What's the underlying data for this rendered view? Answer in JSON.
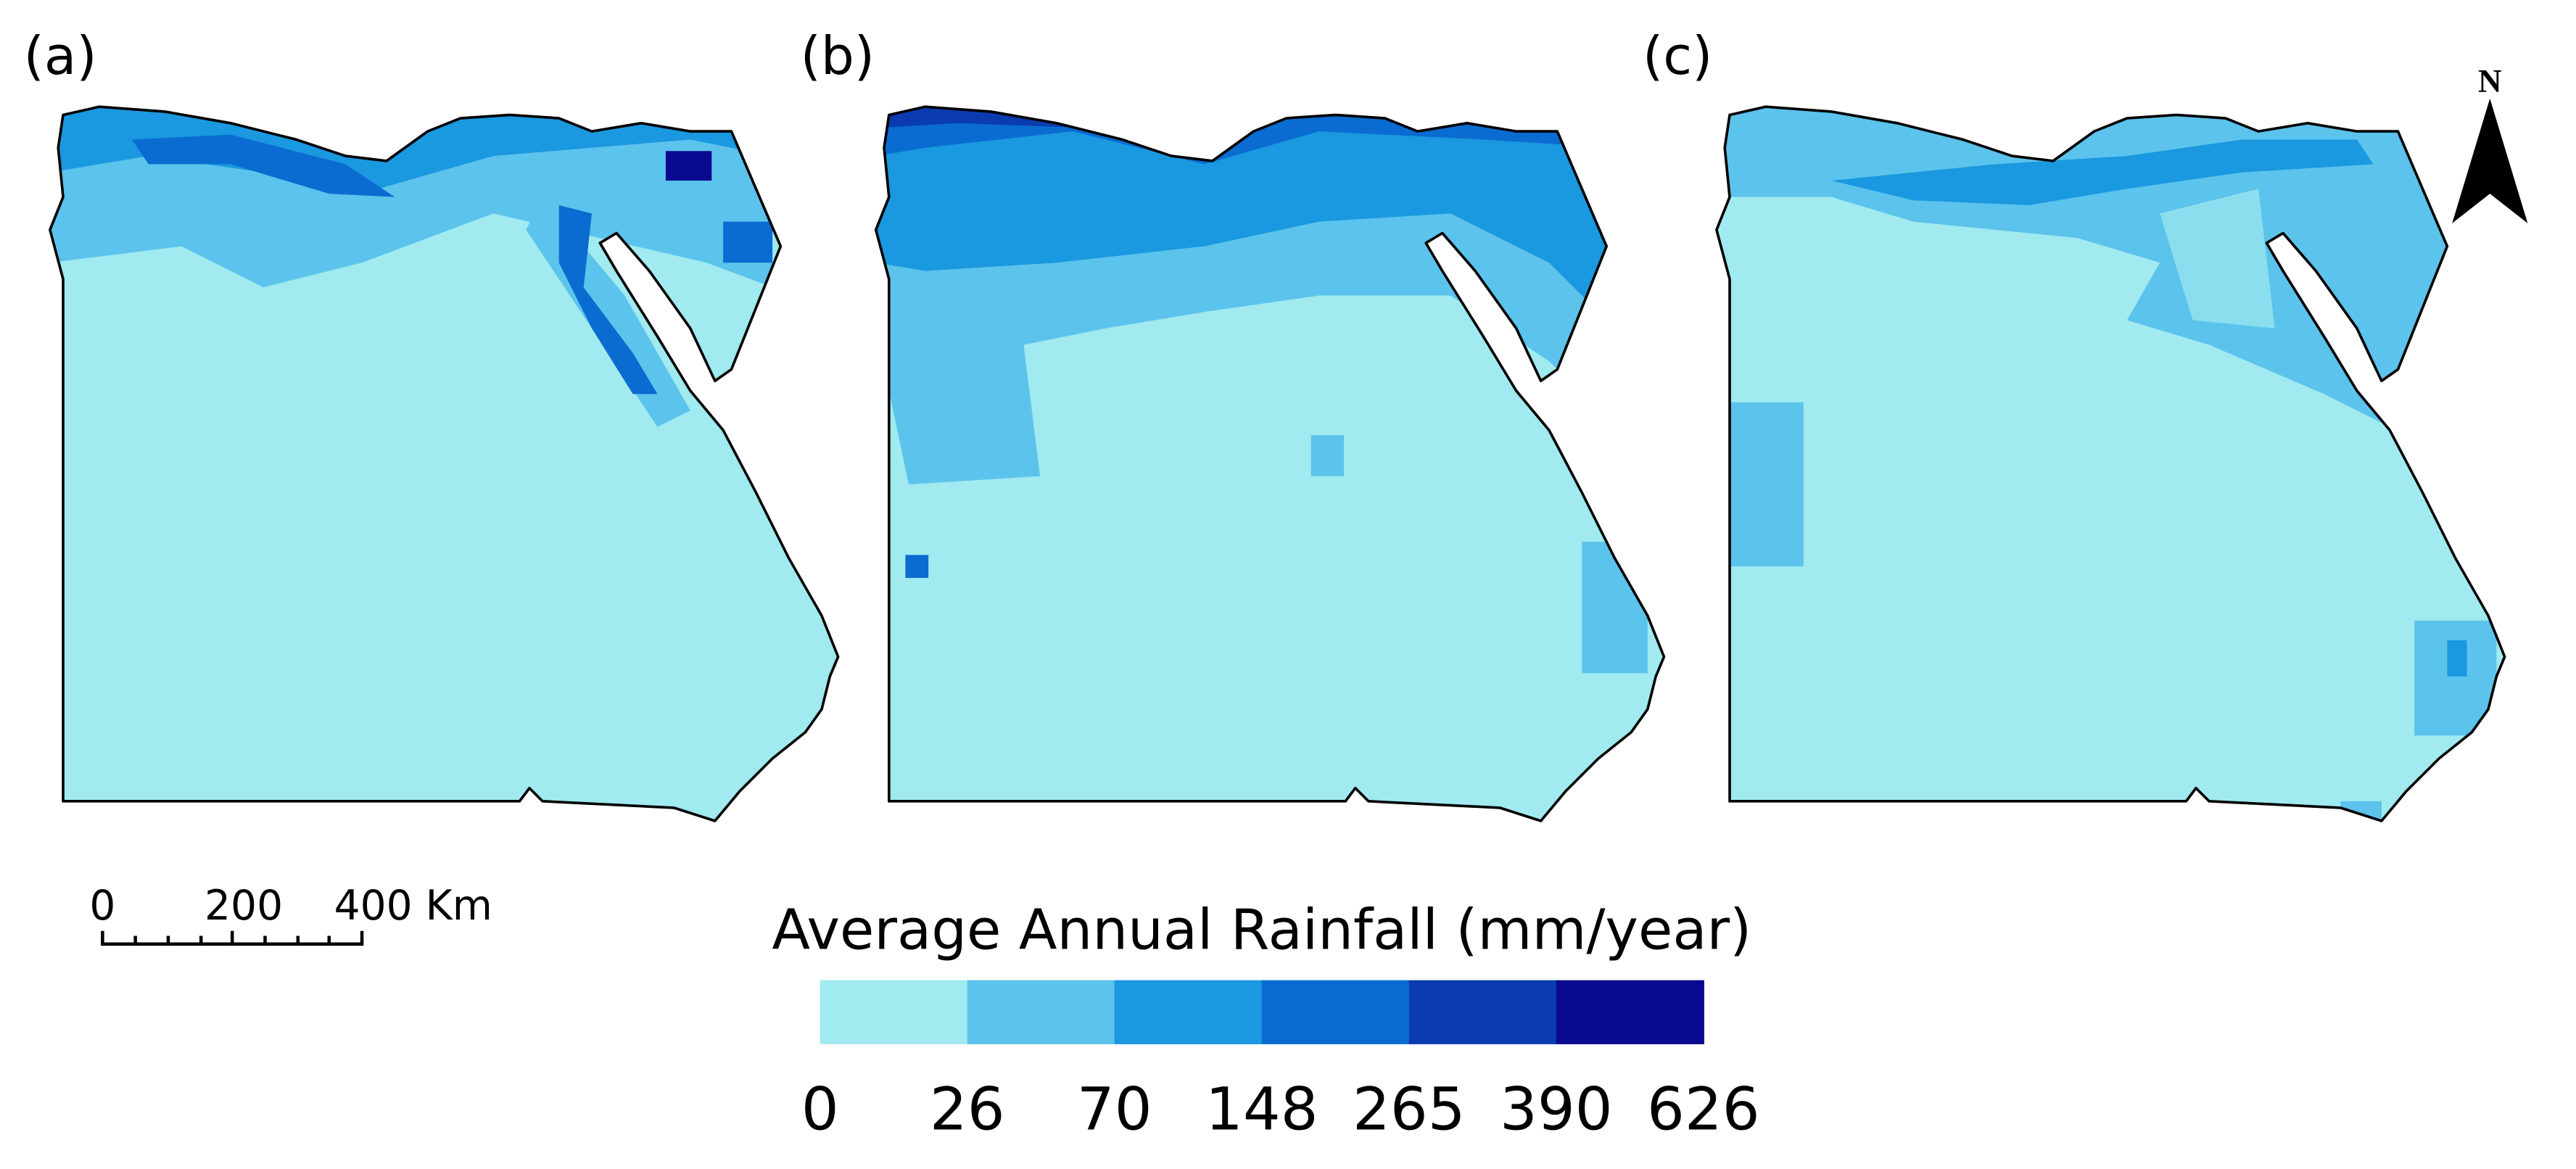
{
  "panels": [
    {
      "label": "(a)"
    },
    {
      "label": "(b)"
    },
    {
      "label": "(c)"
    }
  ],
  "north_arrow": {
    "label": "N"
  },
  "scale_bar": {
    "labels": [
      "0",
      "200",
      "400 Km"
    ]
  },
  "legend": {
    "title": "Average Annual Rainfall (mm/year)",
    "breaks": [
      0,
      26,
      70,
      148,
      265,
      390,
      626
    ],
    "colors": [
      "#a0eaf0",
      "#5cc3ec",
      "#1a98e0",
      "#0a6cd0",
      "#0a3cb0",
      "#0a0a90"
    ]
  }
}
